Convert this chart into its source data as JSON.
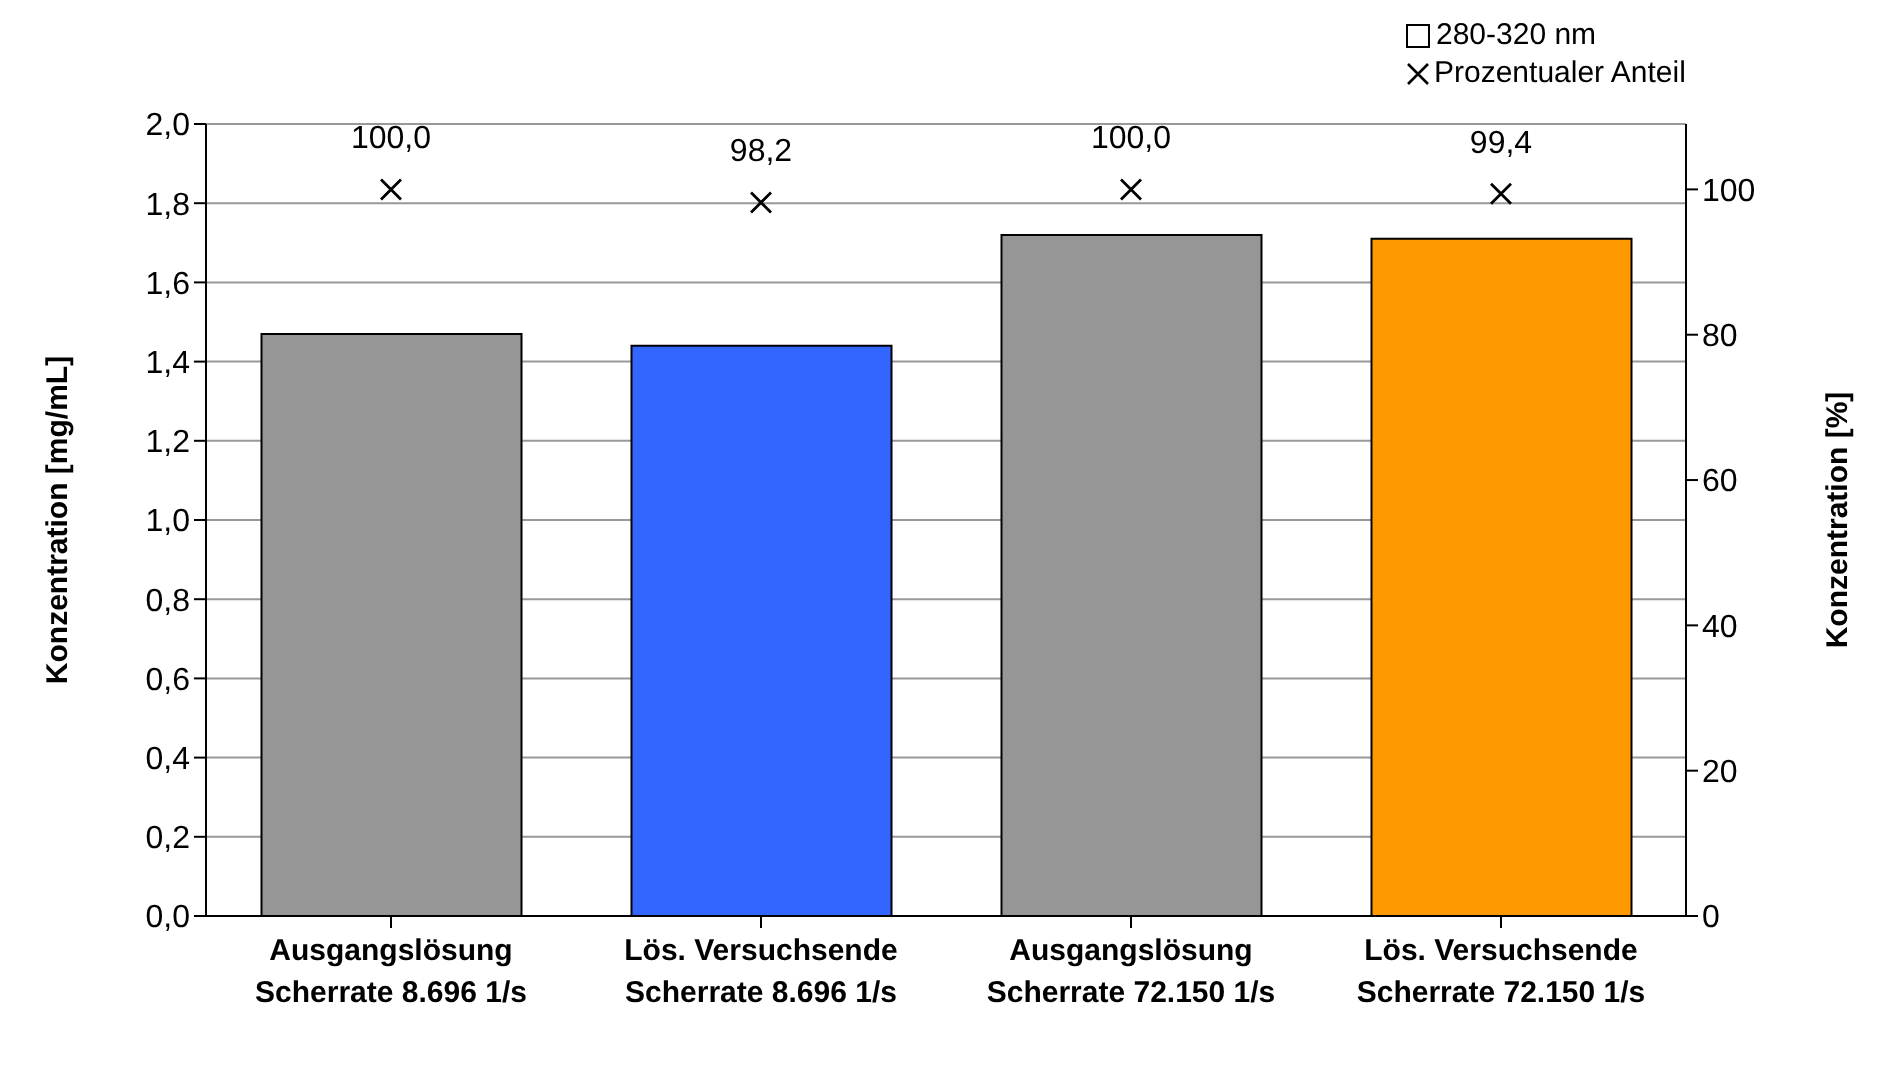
{
  "chart_data": {
    "type": "bar",
    "categories": [
      "Ausgangslösung\nScherrate 8.696 1/s",
      "Lös. Versuchsende\nScherrate 8.696 1/s",
      "Ausgangslösung\nScherrate 72.150 1/s",
      "Lös. Versuchsende\nScherrate 72.150 1/s"
    ],
    "series": [
      {
        "name": "280-320 nm",
        "colors": [
          "#969696",
          "#3366ff",
          "#969696",
          "#ff9900"
        ],
        "values": [
          1.47,
          1.44,
          1.72,
          1.71
        ]
      },
      {
        "name": "Prozentualer Anteil",
        "type": "scatter",
        "axis": "y2",
        "color": "#000000",
        "marker": "cross",
        "value_labels": [
          "100,0",
          "98,2",
          "100,0",
          "99,4"
        ],
        "values": [
          100.0,
          98.2,
          100.0,
          99.4
        ]
      }
    ],
    "ylabel": "Konzentration [mg/mL]",
    "y2label": "Konzentration [%]",
    "ylim": [
      0,
      2
    ],
    "yticks": [
      {
        "value": 0,
        "label": "0,0"
      },
      {
        "value": 0.2,
        "label": "0,2"
      },
      {
        "value": 0.4,
        "label": "0,4"
      },
      {
        "value": 0.6,
        "label": "0,6"
      },
      {
        "value": 0.8,
        "label": "0,8"
      },
      {
        "value": 1,
        "label": "1,0"
      },
      {
        "value": 1.2,
        "label": "1,2"
      },
      {
        "value": 1.4,
        "label": "1,4"
      },
      {
        "value": 1.6,
        "label": "1,6"
      },
      {
        "value": 1.8,
        "label": "1,8"
      },
      {
        "value": 2,
        "label": "2,0"
      }
    ],
    "y2lim": [
      0,
      109
    ],
    "y2ticks": [
      0,
      20,
      40,
      60,
      80,
      100
    ],
    "grid": "y",
    "legend": "top right"
  }
}
